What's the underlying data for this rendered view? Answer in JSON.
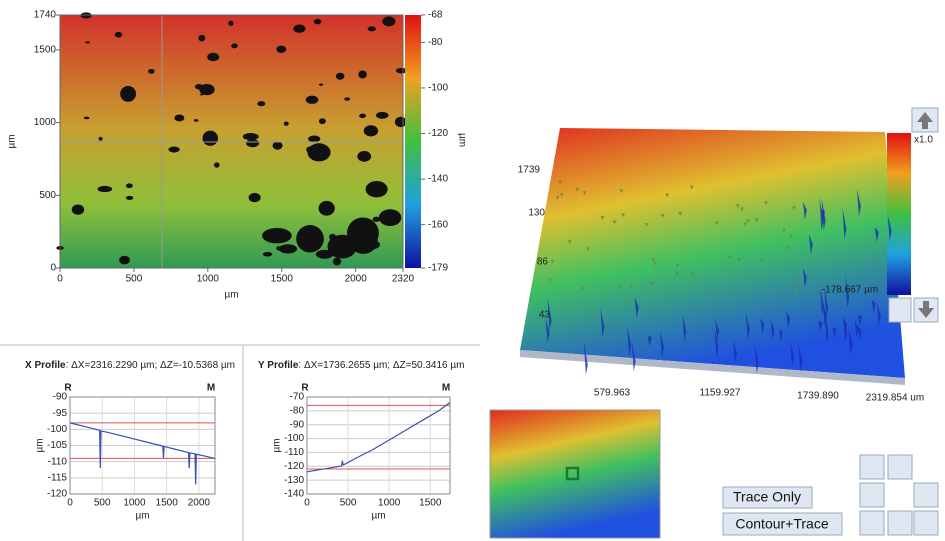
{
  "chart_data": [
    {
      "type": "heatmap",
      "xlabel": "µm",
      "ylabel": "µm",
      "xlim": [
        0,
        2320
      ],
      "ylim": [
        0,
        1740
      ],
      "xticks": [
        0,
        500,
        1000,
        1500,
        2000,
        2320
      ],
      "yticks": [
        0,
        500,
        1000,
        1500,
        1740
      ],
      "colorbar_label": "µm",
      "colorbar_lim": [
        -179,
        -68
      ],
      "colorbar_ticks": [
        -179,
        -160,
        -140,
        -120,
        -100,
        -80,
        -68
      ]
    },
    {
      "type": "line",
      "title": "X Profile",
      "subtitle": "ΔX=2316.2290 µm; ΔZ=-10.5368 µm",
      "xlabel": "µm",
      "ylabel": "µm",
      "color": "#3a4fb0",
      "xlim": [
        0,
        2250
      ],
      "ylim": [
        -120,
        -90
      ],
      "xticks": [
        0,
        500,
        1000,
        1500,
        2000
      ],
      "yticks": [
        -90,
        -95,
        -100,
        -105,
        -110,
        -115,
        -120
      ],
      "grid": true,
      "x": [
        0,
        100,
        200,
        300,
        400,
        460,
        470,
        480,
        600,
        800,
        1000,
        1200,
        1400,
        1440,
        1450,
        1460,
        1600,
        1800,
        1840,
        1850,
        1860,
        1940,
        1950,
        1960,
        2100,
        2250
      ],
      "values": [
        -98,
        -98.5,
        -99,
        -99.5,
        -100,
        -100.3,
        -112,
        -100.5,
        -101,
        -102,
        -103,
        -104,
        -105,
        -105.2,
        -109,
        -105.3,
        -106,
        -107,
        -107.2,
        -112,
        -107.3,
        -107.6,
        -117,
        -107.7,
        -108.3,
        -109
      ],
      "cursors": [
        {
          "label": "R",
          "value": -98
        },
        {
          "label": "M",
          "value": -109
        }
      ]
    },
    {
      "type": "line",
      "title": "Y Profile",
      "subtitle": "ΔX=1736.2655 µm; ΔZ=50.3416 µm",
      "xlabel": "µm",
      "ylabel": "µm",
      "color": "#3a4fb0",
      "xlim": [
        0,
        1740
      ],
      "ylim": [
        -140,
        -70
      ],
      "xticks": [
        0,
        500,
        1000,
        1500
      ],
      "yticks": [
        -70,
        -80,
        -90,
        -100,
        -110,
        -120,
        -130,
        -140
      ],
      "grid": true,
      "x": [
        0,
        100,
        200,
        300,
        400,
        420,
        430,
        440,
        460,
        600,
        800,
        1000,
        1200,
        1400,
        1600,
        1740
      ],
      "values": [
        -124,
        -123,
        -122,
        -121,
        -120,
        -119.8,
        -116,
        -119,
        -118.5,
        -114,
        -108,
        -101,
        -94,
        -87,
        -80,
        -74
      ],
      "cursors": [
        {
          "label": "R",
          "value": -122
        },
        {
          "label": "M",
          "value": -76
        }
      ]
    }
  ],
  "view3d": {
    "y_labels": [
      "1739",
      "130",
      "86",
      "43"
    ],
    "x_labels": [
      "579.963",
      "1159.927",
      "1739.890",
      "2319.854 um"
    ],
    "scale": "x1.0",
    "min_label": "-178.667 µm"
  },
  "buttons": {
    "trace_only": "Trace Only",
    "contour_trace": "Contour+Trace"
  }
}
